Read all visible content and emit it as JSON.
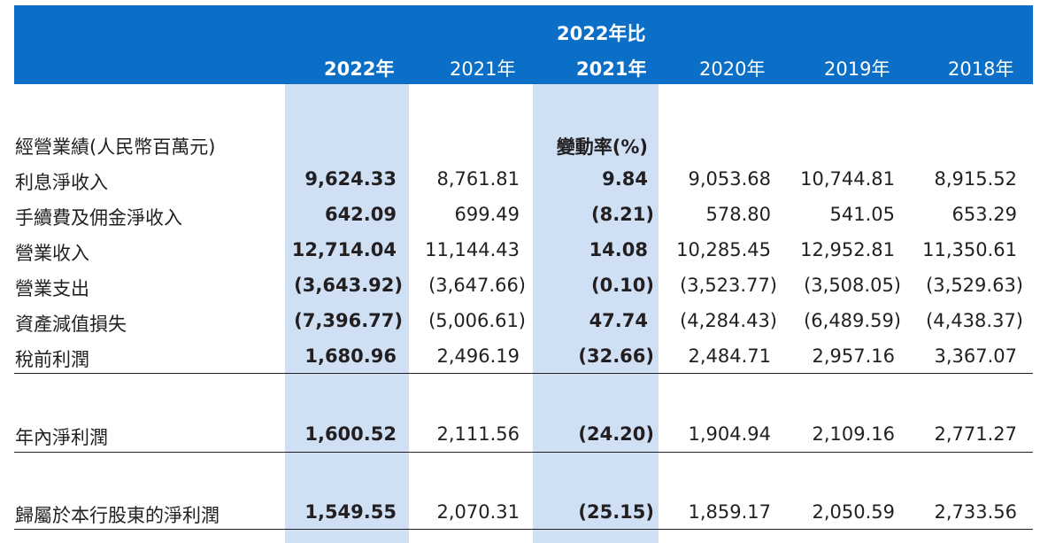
{
  "header": {
    "compare_title": "2022年比",
    "columns": [
      "2022年",
      "2021年",
      "2021年",
      "2020年",
      "2019年",
      "2018年"
    ]
  },
  "section": {
    "title": "經營業績(人民幣百萬元)",
    "change_label": "變動率(%)"
  },
  "rows": [
    {
      "label": "利息淨收入",
      "values": [
        "9,624.33",
        "8,761.81",
        "9.84",
        "9,053.68",
        "10,744.81",
        "8,915.52"
      ]
    },
    {
      "label": "手續費及佣金淨收入",
      "values": [
        "642.09",
        "699.49",
        "(8.21)",
        "578.80",
        "541.05",
        "653.29"
      ]
    },
    {
      "label": "營業收入",
      "values": [
        "12,714.04",
        "11,144.43",
        "14.08",
        "10,285.45",
        "12,952.81",
        "11,350.61"
      ]
    },
    {
      "label": "營業支出",
      "values": [
        "(3,643.92)",
        "(3,647.66)",
        "(0.10)",
        "(3,523.77)",
        "(3,508.05)",
        "(3,529.63)"
      ]
    },
    {
      "label": "資產減值損失",
      "values": [
        "(7,396.77)",
        "(5,006.61)",
        "47.74",
        "(4,284.43)",
        "(6,489.59)",
        "(4,438.37)"
      ]
    },
    {
      "label": "稅前利潤",
      "values": [
        "1,680.96",
        "2,496.19",
        "(32.66)",
        "2,484.71",
        "2,957.16",
        "3,367.07"
      ]
    },
    {
      "label": "年內淨利潤",
      "values": [
        "1,600.52",
        "2,111.56",
        "(24.20)",
        "1,904.94",
        "2,109.16",
        "2,771.27"
      ]
    },
    {
      "label": "歸屬於本行股東的淨利潤",
      "values": [
        "1,549.55",
        "2,070.31",
        "(25.15)",
        "1,859.17",
        "2,050.59",
        "2,733.56"
      ]
    }
  ]
}
